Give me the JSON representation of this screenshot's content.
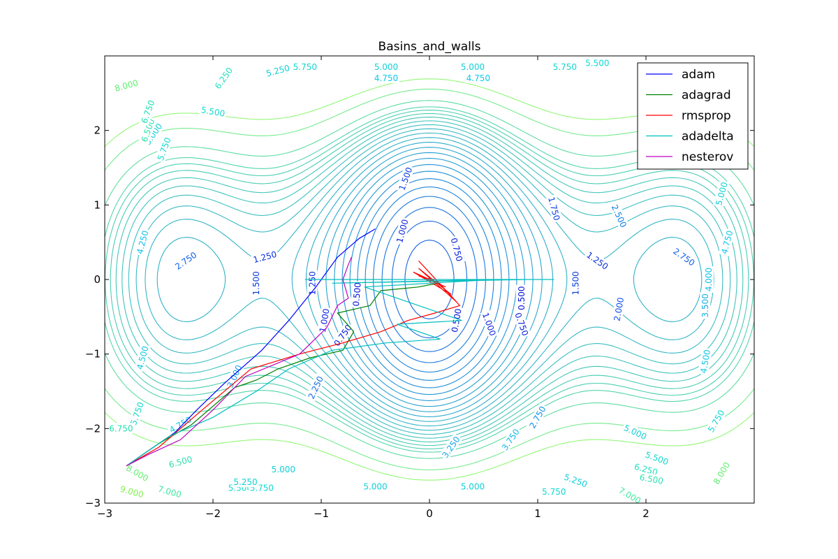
{
  "chart_data": {
    "type": "line",
    "title": "Basins_and_walls",
    "xlabel": "",
    "ylabel": "",
    "xlim": [
      -3,
      3
    ],
    "ylim": [
      -3,
      3
    ],
    "x_ticks": [
      -3,
      -2,
      -1,
      0,
      1,
      2
    ],
    "x_tick_labels": [
      "−3",
      "−2",
      "−1",
      "0",
      "1",
      "2"
    ],
    "y_ticks": [
      -3,
      -2,
      -1,
      0,
      1,
      2
    ],
    "y_tick_labels": [
      "−3",
      "−2",
      "−1",
      "0",
      "1",
      "2"
    ],
    "grid": false,
    "legend_position": "top-right",
    "contour_levels": [
      0.5,
      0.75,
      1.0,
      1.25,
      1.5,
      1.75,
      2.0,
      2.25,
      2.5,
      2.75,
      3.0,
      3.25,
      3.5,
      3.75,
      4.0,
      4.25,
      4.5,
      4.75,
      5.0,
      5.25,
      5.5,
      5.75,
      6.0,
      6.25,
      6.5,
      7.0,
      8.0,
      9.0
    ],
    "contour_labels": [
      {
        "x": -2.25,
        "y": 0.25,
        "text": "2.750",
        "color": "#1060e8",
        "rot": 35
      },
      {
        "x": -1.52,
        "y": 0.3,
        "text": "1.250",
        "color": "#0a2ee0",
        "rot": 15
      },
      {
        "x": -1.6,
        "y": -0.05,
        "text": "1.500",
        "color": "#0a3ee0",
        "rot": 90
      },
      {
        "x": -1.08,
        "y": -0.05,
        "text": "1.250",
        "color": "#0a2ee0",
        "rot": 90
      },
      {
        "x": -0.97,
        "y": -0.55,
        "text": "1.000",
        "color": "#0a1ee0",
        "rot": 80
      },
      {
        "x": -0.67,
        "y": -0.2,
        "text": "0.500",
        "color": "#0010d8",
        "rot": 85
      },
      {
        "x": -0.8,
        "y": -0.75,
        "text": "0.750",
        "color": "#0018dc",
        "rot": 55
      },
      {
        "x": -1.05,
        "y": -1.45,
        "text": "2.250",
        "color": "#1070e8",
        "rot": 65
      },
      {
        "x": -1.8,
        "y": -1.3,
        "text": "3.000",
        "color": "#15a0e8",
        "rot": 65
      },
      {
        "x": -2.65,
        "y": -1.05,
        "text": "4.500",
        "color": "#10c8e8",
        "rot": 75
      },
      {
        "x": -2.65,
        "y": 0.5,
        "text": "4.250",
        "color": "#10c0e8",
        "rot": 75
      },
      {
        "x": -2.7,
        "y": -1.8,
        "text": "5.750",
        "color": "#10d8d0",
        "rot": 70
      },
      {
        "x": -2.85,
        "y": -2.0,
        "text": "6.750",
        "color": "#20e0b0",
        "rot": 0
      },
      {
        "x": -2.3,
        "y": -1.95,
        "text": "4.750",
        "color": "#10c8e8",
        "rot": 30
      },
      {
        "x": -2.7,
        "y": -2.6,
        "text": "8.000",
        "color": "#60f070",
        "rot": -30
      },
      {
        "x": -2.75,
        "y": -2.85,
        "text": "9.000",
        "color": "#80f050",
        "rot": -15
      },
      {
        "x": -2.4,
        "y": -2.85,
        "text": "7.000",
        "color": "#40e8a0",
        "rot": -15
      },
      {
        "x": -2.3,
        "y": -2.45,
        "text": "6.500",
        "color": "#30e0b0",
        "rot": 15
      },
      {
        "x": -1.75,
        "y": -2.8,
        "text": "5.500",
        "color": "#10e0c8",
        "rot": 0
      },
      {
        "x": -1.55,
        "y": -2.8,
        "text": "5.750",
        "color": "#10d8d0",
        "rot": 0
      },
      {
        "x": -1.7,
        "y": -2.72,
        "text": "5.250",
        "color": "#10d0d8",
        "rot": 0
      },
      {
        "x": -1.35,
        "y": -2.55,
        "text": "5.000",
        "color": "#10d0d8",
        "rot": 0
      },
      {
        "x": -0.5,
        "y": -2.78,
        "text": "5.000",
        "color": "#10d0d8",
        "rot": 0
      },
      {
        "x": 0.4,
        "y": -2.78,
        "text": "5.000",
        "color": "#10d0d8",
        "rot": 0
      },
      {
        "x": 0.2,
        "y": -2.25,
        "text": "3.250",
        "color": "#15a8e8",
        "rot": 55
      },
      {
        "x": 0.75,
        "y": -2.15,
        "text": "3.750",
        "color": "#10b8e8",
        "rot": 55
      },
      {
        "x": 1.0,
        "y": -1.85,
        "text": "2.750",
        "color": "#1090e8",
        "rot": 60
      },
      {
        "x": 1.35,
        "y": -2.7,
        "text": "5.250",
        "color": "#10d0d8",
        "rot": -20
      },
      {
        "x": 1.15,
        "y": -2.85,
        "text": "5.750",
        "color": "#10d8d0",
        "rot": 0
      },
      {
        "x": 1.9,
        "y": -2.05,
        "text": "5.000",
        "color": "#10d0d8",
        "rot": -25
      },
      {
        "x": 2.1,
        "y": -2.4,
        "text": "5.500",
        "color": "#10d8d0",
        "rot": -20
      },
      {
        "x": 2.0,
        "y": -2.55,
        "text": "6.250",
        "color": "#20e0c0",
        "rot": -15
      },
      {
        "x": 2.05,
        "y": -2.68,
        "text": "6.500",
        "color": "#30e0b0",
        "rot": -10
      },
      {
        "x": 1.85,
        "y": -2.9,
        "text": "7.000",
        "color": "#40e8a0",
        "rot": -30
      },
      {
        "x": 2.7,
        "y": -2.6,
        "text": "8.000",
        "color": "#60f070",
        "rot": 60
      },
      {
        "x": 2.65,
        "y": -1.9,
        "text": "5.750",
        "color": "#10d8d0",
        "rot": 60
      },
      {
        "x": 2.55,
        "y": -1.1,
        "text": "4.500",
        "color": "#10c8e8",
        "rot": 80
      },
      {
        "x": 2.55,
        "y": -0.35,
        "text": "3.500",
        "color": "#15b0e8",
        "rot": 90
      },
      {
        "x": 2.58,
        "y": 0.0,
        "text": "4.000",
        "color": "#10c0e8",
        "rot": 90
      },
      {
        "x": 2.75,
        "y": 0.5,
        "text": "4.750",
        "color": "#10c8e8",
        "rot": 75
      },
      {
        "x": 2.7,
        "y": 1.15,
        "text": "5.000",
        "color": "#10d0d8",
        "rot": 75
      },
      {
        "x": 2.35,
        "y": 0.3,
        "text": "2.750",
        "color": "#1060e8",
        "rot": -35
      },
      {
        "x": 1.75,
        "y": 0.85,
        "text": "2.500",
        "color": "#1080e8",
        "rot": -65
      },
      {
        "x": 1.55,
        "y": 0.25,
        "text": "1.250",
        "color": "#0a2ee0",
        "rot": -35
      },
      {
        "x": 1.35,
        "y": -0.05,
        "text": "1.500",
        "color": "#0a3ee0",
        "rot": 90
      },
      {
        "x": 1.75,
        "y": -0.4,
        "text": "2.000",
        "color": "#1050e8",
        "rot": 80
      },
      {
        "x": 1.15,
        "y": 0.95,
        "text": "1.750",
        "color": "#0a40e0",
        "rot": -75
      },
      {
        "x": 0.85,
        "y": -0.6,
        "text": "0.750",
        "color": "#0018dc",
        "rot": -70
      },
      {
        "x": 0.85,
        "y": -0.25,
        "text": "0.500",
        "color": "#0010d8",
        "rot": 90
      },
      {
        "x": 0.55,
        "y": -0.6,
        "text": "1.000",
        "color": "#0a1ee0",
        "rot": -70
      },
      {
        "x": 0.25,
        "y": -0.55,
        "text": "0.500",
        "color": "#0010d8",
        "rot": 80
      },
      {
        "x": 0.25,
        "y": 0.4,
        "text": "0.750",
        "color": "#0018dc",
        "rot": -75
      },
      {
        "x": -0.25,
        "y": 0.65,
        "text": "1.000",
        "color": "#0a1ee0",
        "rot": 75
      },
      {
        "x": -0.22,
        "y": 1.35,
        "text": "1.500",
        "color": "#0a3ee0",
        "rot": 70
      },
      {
        "x": -2.55,
        "y": 1.95,
        "text": "5.000",
        "color": "#10d0d8",
        "rot": 55
      },
      {
        "x": -2.6,
        "y": 2.0,
        "text": "6.500",
        "color": "#30e0b0",
        "rot": 70
      },
      {
        "x": -2.6,
        "y": 2.25,
        "text": "6.750",
        "color": "#20e0b0",
        "rot": 70
      },
      {
        "x": -2.8,
        "y": 2.6,
        "text": "8.000",
        "color": "#60f070",
        "rot": 15
      },
      {
        "x": -2.45,
        "y": 1.75,
        "text": "5.750",
        "color": "#10d8d0",
        "rot": 70
      },
      {
        "x": -2.0,
        "y": 2.25,
        "text": "5.500",
        "color": "#10d8d0",
        "rot": -10
      },
      {
        "x": -1.9,
        "y": 2.7,
        "text": "6.250",
        "color": "#20e0c0",
        "rot": 55
      },
      {
        "x": -1.4,
        "y": 2.8,
        "text": "5.250",
        "color": "#10d0d8",
        "rot": 15
      },
      {
        "x": -1.15,
        "y": 2.85,
        "text": "5.750",
        "color": "#10d8d0",
        "rot": 0
      },
      {
        "x": -0.4,
        "y": 2.85,
        "text": "5.000",
        "color": "#10d0d8",
        "rot": 0
      },
      {
        "x": -0.4,
        "y": 2.7,
        "text": "4.750",
        "color": "#10c8e8",
        "rot": 0
      },
      {
        "x": 0.4,
        "y": 2.85,
        "text": "5.000",
        "color": "#10d0d8",
        "rot": 0
      },
      {
        "x": 0.45,
        "y": 2.7,
        "text": "4.750",
        "color": "#10c8e8",
        "rot": 0
      },
      {
        "x": 1.25,
        "y": 2.85,
        "text": "5.750",
        "color": "#10d8d0",
        "rot": 0
      },
      {
        "x": 1.55,
        "y": 2.9,
        "text": "5.500",
        "color": "#10d8d0",
        "rot": 0
      }
    ],
    "series": [
      {
        "name": "adam",
        "color": "#0000ff",
        "x": [
          -2.8,
          -2.6,
          -2.35,
          -2.15,
          -1.9,
          -1.55,
          -1.3,
          -1.05,
          -0.85,
          -0.65,
          -0.5
        ],
        "y": [
          -2.5,
          -2.3,
          -2.05,
          -1.75,
          -1.4,
          -0.95,
          -0.55,
          -0.1,
          0.3,
          0.55,
          0.68
        ]
      },
      {
        "name": "adagrad",
        "color": "#008000",
        "x": [
          -2.8,
          -2.5,
          -2.2,
          -1.8,
          -1.6,
          -1.4,
          -1.1,
          -0.8,
          -0.7,
          -0.85,
          -0.55,
          -0.45,
          -0.1,
          0.0,
          0.1
        ],
        "y": [
          -2.5,
          -2.2,
          -1.95,
          -1.45,
          -1.35,
          -1.2,
          -1.05,
          -0.95,
          -0.7,
          -0.45,
          -0.35,
          -0.15,
          -0.1,
          -0.07,
          -0.05
        ]
      },
      {
        "name": "rmsprop",
        "color": "#ff0000",
        "x": [
          -2.8,
          -2.5,
          -2.1,
          -1.65,
          -1.2,
          -0.8,
          -0.45,
          -0.2,
          0.05,
          0.28,
          -0.1,
          0.25,
          -0.1,
          0.2,
          -0.15,
          0.15,
          -0.1,
          0.1,
          -0.05,
          0.05
        ],
        "y": [
          -2.5,
          -2.25,
          -1.75,
          -1.2,
          -1.0,
          -0.85,
          -0.7,
          -0.55,
          -0.45,
          -0.35,
          0.25,
          -0.3,
          0.15,
          -0.2,
          0.1,
          -0.1,
          0.05,
          -0.05,
          0.02,
          0.0
        ]
      },
      {
        "name": "adadelta",
        "color": "#00bfbf",
        "x": [
          -2.8,
          -2.4,
          -2.0,
          -1.6,
          -1.3,
          -0.9,
          -0.4,
          0.1,
          -0.3,
          0.3,
          -0.6,
          0.6,
          -0.9,
          0.9,
          -1.15,
          1.15,
          -1.0,
          1.0
        ],
        "y": [
          -2.5,
          -2.1,
          -1.85,
          -1.5,
          -1.2,
          -0.95,
          -0.85,
          -0.8,
          -0.6,
          -0.55,
          -0.1,
          0.0,
          -0.05,
          0.0,
          0.0,
          0.0,
          0.0,
          0.0
        ]
      },
      {
        "name": "nesterov",
        "color": "#bf00bf",
        "x": [
          -2.8,
          -2.6,
          -2.3,
          -2.0,
          -1.7,
          -1.45,
          -1.2,
          -0.95,
          -0.85,
          -0.75,
          -0.8,
          -0.75,
          -0.72
        ],
        "y": [
          -2.5,
          -2.35,
          -2.15,
          -1.75,
          -1.3,
          -1.15,
          -1.0,
          -0.65,
          -0.35,
          -0.25,
          0.0,
          0.2,
          0.3
        ]
      }
    ]
  }
}
